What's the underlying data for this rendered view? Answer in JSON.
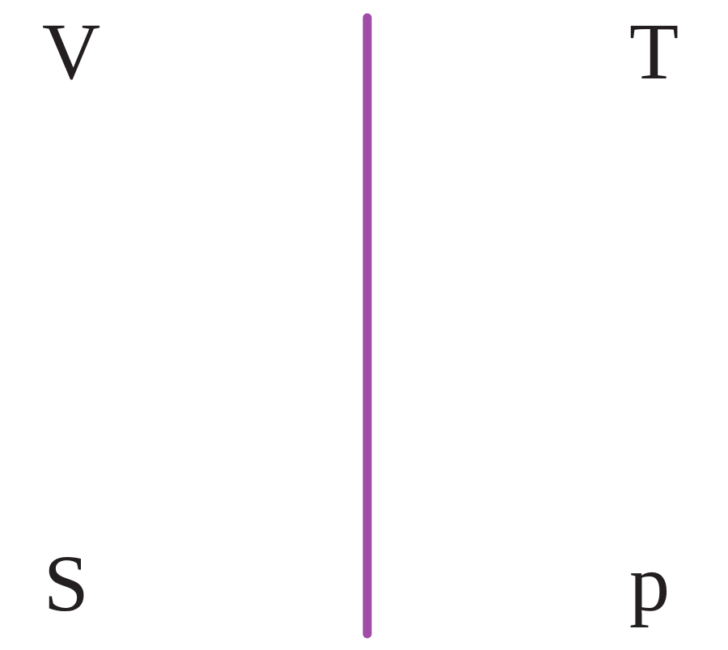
{
  "labels": {
    "top_left": "V",
    "top_right": "T",
    "bottom_left": "S",
    "bottom_right": "p"
  },
  "colors": {
    "divider": "#a24ca9",
    "text": "#231f20",
    "background": "#ffffff"
  }
}
